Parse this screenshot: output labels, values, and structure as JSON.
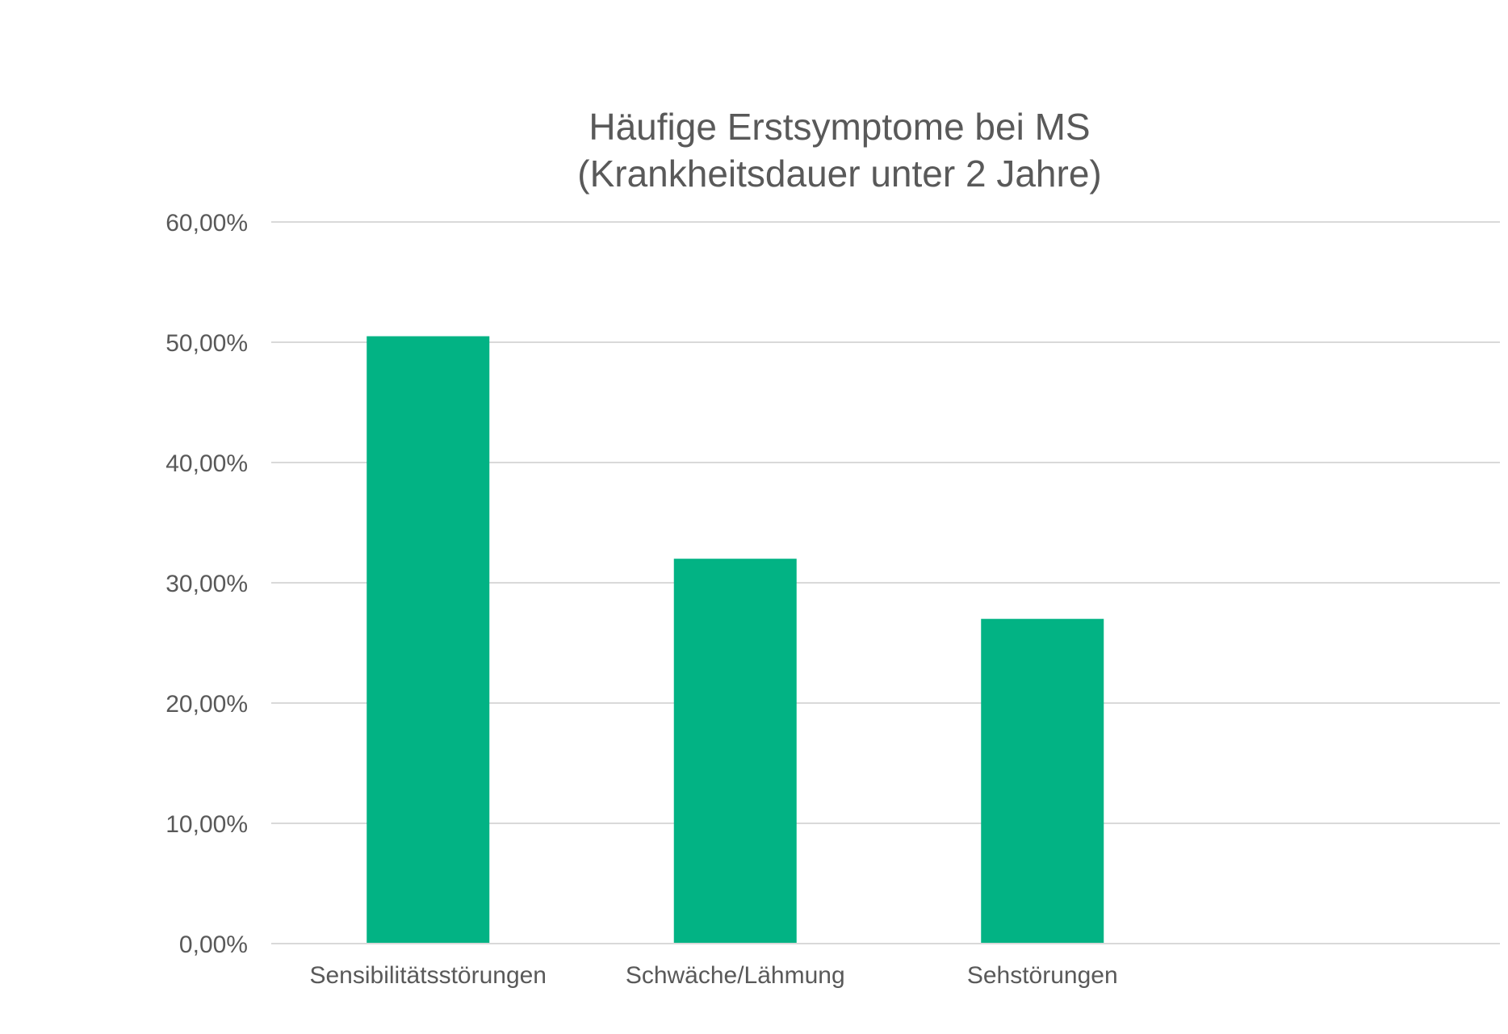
{
  "chart_data": {
    "type": "bar",
    "title": [
      "Häufige Erstsymptome bei MS",
      "(Krankheitsdauer unter 2 Jahre)"
    ],
    "categories": [
      "Sensibilitätsstörungen",
      "Schwäche/Lähmung",
      "Sehstörungen"
    ],
    "values": [
      0.505,
      0.32,
      0.27
    ],
    "ylim": [
      0,
      0.6
    ],
    "yticks": [
      {
        "value": 0.0,
        "label": "0,00%"
      },
      {
        "value": 0.1,
        "label": "10,00%"
      },
      {
        "value": 0.2,
        "label": "20,00%"
      },
      {
        "value": 0.3,
        "label": "30,00%"
      },
      {
        "value": 0.4,
        "label": "40,00%"
      },
      {
        "value": 0.5,
        "label": "50,00%"
      },
      {
        "value": 0.6,
        "label": "60,00%"
      }
    ],
    "grid": true,
    "legend": "none",
    "colors": {
      "bar": "#02b384",
      "gridline": "#d9d9d9",
      "text": "#595959"
    }
  }
}
